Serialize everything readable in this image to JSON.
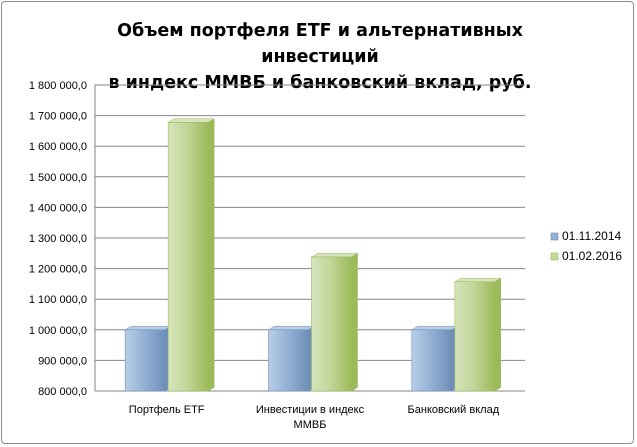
{
  "chart_data": {
    "type": "bar",
    "title_lines": [
      "Объем портфеля ETF и альтернативных  инвестиций",
      "в индекс ММВБ и банковский  вклад,  руб."
    ],
    "categories": [
      [
        "Портфель ETF"
      ],
      [
        "Инвестиции в индекс",
        "ММВБ"
      ],
      [
        "Банковский вклад"
      ]
    ],
    "series": [
      {
        "name": "01.11.2014",
        "values": [
          1000000,
          1000000,
          1000000
        ],
        "color": "#95b3d7",
        "dark": "#6e8fb8",
        "light": "#b9cde5"
      },
      {
        "name": "01.02.2016",
        "values": [
          1678000,
          1238000,
          1157000
        ],
        "color": "#c3d69b",
        "dark": "#9bbb59",
        "light": "#d7e4bd"
      }
    ],
    "ylim": [
      800000,
      1800000
    ],
    "yticks": [
      800000,
      900000,
      1000000,
      1100000,
      1200000,
      1300000,
      1400000,
      1500000,
      1600000,
      1700000,
      1800000
    ],
    "ytick_labels": [
      "800 000,0",
      "900 000,0",
      "1 000 000,0",
      "1 100 000,0",
      "1 200 000,0",
      "1 300 000,0",
      "1 400 000,0",
      "1 500 000,0",
      "1 600 000,0",
      "1 700 000,0",
      "1 800 000,0"
    ],
    "grid": true,
    "legend_position": "right",
    "xlabel": "",
    "ylabel": ""
  }
}
